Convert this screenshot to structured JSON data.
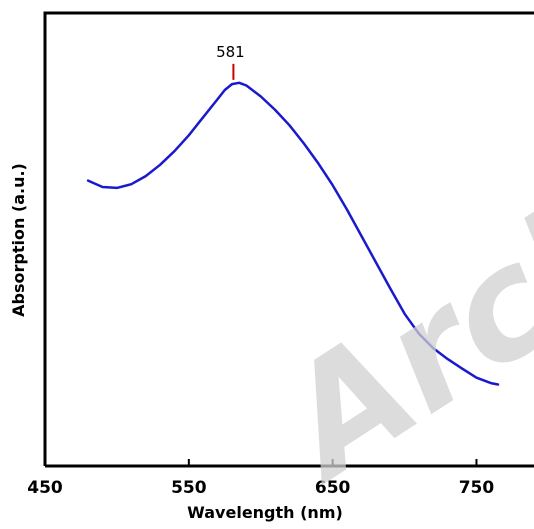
{
  "chart_data": {
    "type": "line",
    "title": "",
    "xlabel": "Wavelength (nm)",
    "ylabel": "Absorption (a.u.)",
    "xlim": [
      450,
      790
    ],
    "ylim": [
      0,
      1.0
    ],
    "xticks": [
      "450",
      "550",
      "650",
      "750"
    ],
    "xtick_values": [
      450,
      550,
      650,
      750
    ],
    "yticks_shown": false,
    "grid": false,
    "series": [
      {
        "color": "#1a1acc",
        "x": [
          480,
          490,
          500,
          510,
          520,
          530,
          540,
          550,
          560,
          570,
          575,
          580,
          585,
          590,
          600,
          610,
          620,
          630,
          640,
          650,
          660,
          670,
          680,
          690,
          700,
          710,
          720,
          730,
          740,
          750,
          760,
          765
        ],
        "y": [
          0.63,
          0.616,
          0.614,
          0.622,
          0.64,
          0.665,
          0.695,
          0.73,
          0.77,
          0.81,
          0.83,
          0.843,
          0.846,
          0.84,
          0.816,
          0.786,
          0.752,
          0.712,
          0.668,
          0.62,
          0.566,
          0.508,
          0.45,
          0.392,
          0.336,
          0.292,
          0.26,
          0.236,
          0.215,
          0.195,
          0.183,
          0.18
        ]
      }
    ],
    "annotations": [
      {
        "text": "581",
        "x": 581,
        "color": "#cc0000"
      }
    ],
    "watermark": "Archi"
  }
}
